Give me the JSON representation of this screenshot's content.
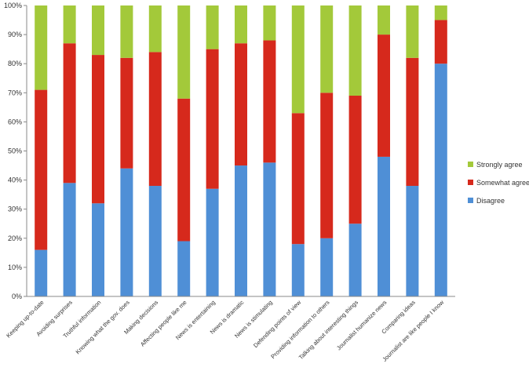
{
  "chart_data": {
    "type": "bar",
    "stacked": true,
    "percent": true,
    "categories": [
      "Keeping up-to-date",
      "Avoiding surprises",
      "Truthful information",
      "Knowing what the gov. does",
      "Making decisions",
      "Affecting people like me",
      "News is entertaining",
      "News is dramatic",
      "News is stimulating",
      "Defending points of view",
      "Providing information to others",
      "Talking about interesting things",
      "Journalist humanize news",
      "Comparing ideas",
      "Journalist are like people I know"
    ],
    "series": [
      {
        "name": "Disagree",
        "color": "#4f8fd6",
        "values": [
          16,
          39,
          32,
          44,
          38,
          19,
          37,
          45,
          46,
          18,
          20,
          25,
          48,
          38,
          80
        ]
      },
      {
        "name": "Somewhat agree",
        "color": "#d6291c",
        "values": [
          55,
          48,
          51,
          38,
          46,
          49,
          48,
          42,
          42,
          45,
          50,
          44,
          42,
          44,
          15
        ]
      },
      {
        "name": "Strongly agree",
        "color": "#a3c93a",
        "values": [
          29,
          13,
          17,
          18,
          16,
          32,
          15,
          13,
          12,
          37,
          30,
          31,
          10,
          18,
          5
        ]
      }
    ],
    "y_ticks": [
      "0%",
      "10%",
      "20%",
      "30%",
      "40%",
      "50%",
      "60%",
      "70%",
      "80%",
      "90%",
      "100%"
    ],
    "ylim": [
      0,
      100
    ],
    "grid": false,
    "legend_position": "right",
    "legend_order": [
      "Strongly agree",
      "Somewhat agree",
      "Disagree"
    ]
  }
}
